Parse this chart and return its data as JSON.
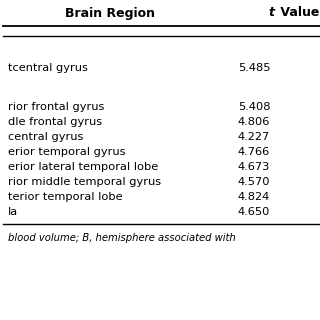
{
  "col_headers": [
    "Brain Region",
    "t Value"
  ],
  "rows": [
    [
      "tcentral gyrus",
      "5.485"
    ],
    [
      "rior frontal gyrus",
      "5.408"
    ],
    [
      "dle frontal gyrus",
      "4.806"
    ],
    [
      "central gyrus",
      "4.227"
    ],
    [
      "erior temporal gyrus",
      "4.766"
    ],
    [
      "erior lateral temporal lobe",
      "4.673"
    ],
    [
      "rior middle temporal gyrus",
      "4.570"
    ],
    [
      "terior temporal lobe",
      "4.824"
    ],
    [
      "la",
      "4.650"
    ]
  ],
  "footer": "blood volume; B, hemisphere associated with",
  "bg_color": "#ffffff",
  "text_color": "#000000",
  "header_fontsize": 9.0,
  "body_fontsize": 8.2,
  "footer_fontsize": 7.2
}
